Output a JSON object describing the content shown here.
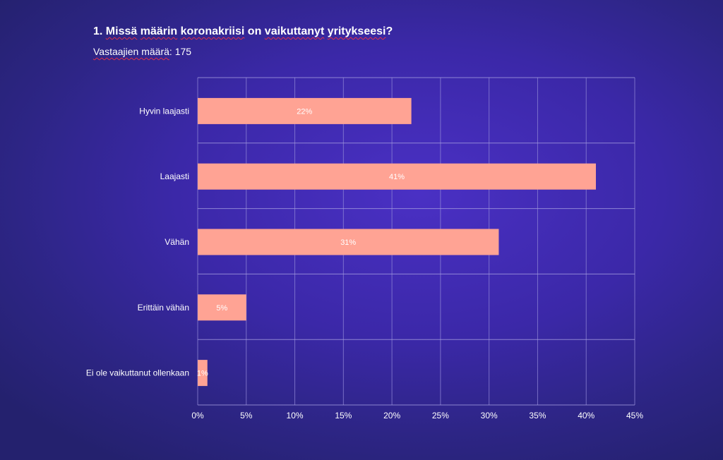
{
  "header": {
    "title_prefix": "1. ",
    "title_words": [
      "Missä",
      "määrin",
      "koronakriisi",
      "on",
      "vaikuttanyt",
      "yritykseesi"
    ],
    "title_suffix": "?",
    "subtitle_label": "Vastaajien määrä",
    "subtitle_suffix": ": 175"
  },
  "chart_data": {
    "type": "bar",
    "orientation": "horizontal",
    "title": "1. Missä määrin koronakriisi on vaikuttanyt yritykseesi?",
    "subtitle": "Vastaajien määrä: 175",
    "categories": [
      "Hyvin laajasti",
      "Laajasti",
      "Vähän",
      "Erittäin vähän",
      "Ei ole vaikuttanut ollenkaan"
    ],
    "values": [
      22,
      41,
      31,
      5,
      1
    ],
    "data_labels": [
      "22%",
      "41%",
      "31%",
      "5%",
      "1%"
    ],
    "xlim": [
      0,
      45
    ],
    "xticks": [
      0,
      5,
      10,
      15,
      20,
      25,
      30,
      35,
      40,
      45
    ],
    "xtick_labels": [
      "0%",
      "5%",
      "10%",
      "15%",
      "20%",
      "25%",
      "30%",
      "35%",
      "40%",
      "45%"
    ],
    "xlabel": "",
    "ylabel": "",
    "grid": true,
    "bar_color": "#ffa394"
  }
}
